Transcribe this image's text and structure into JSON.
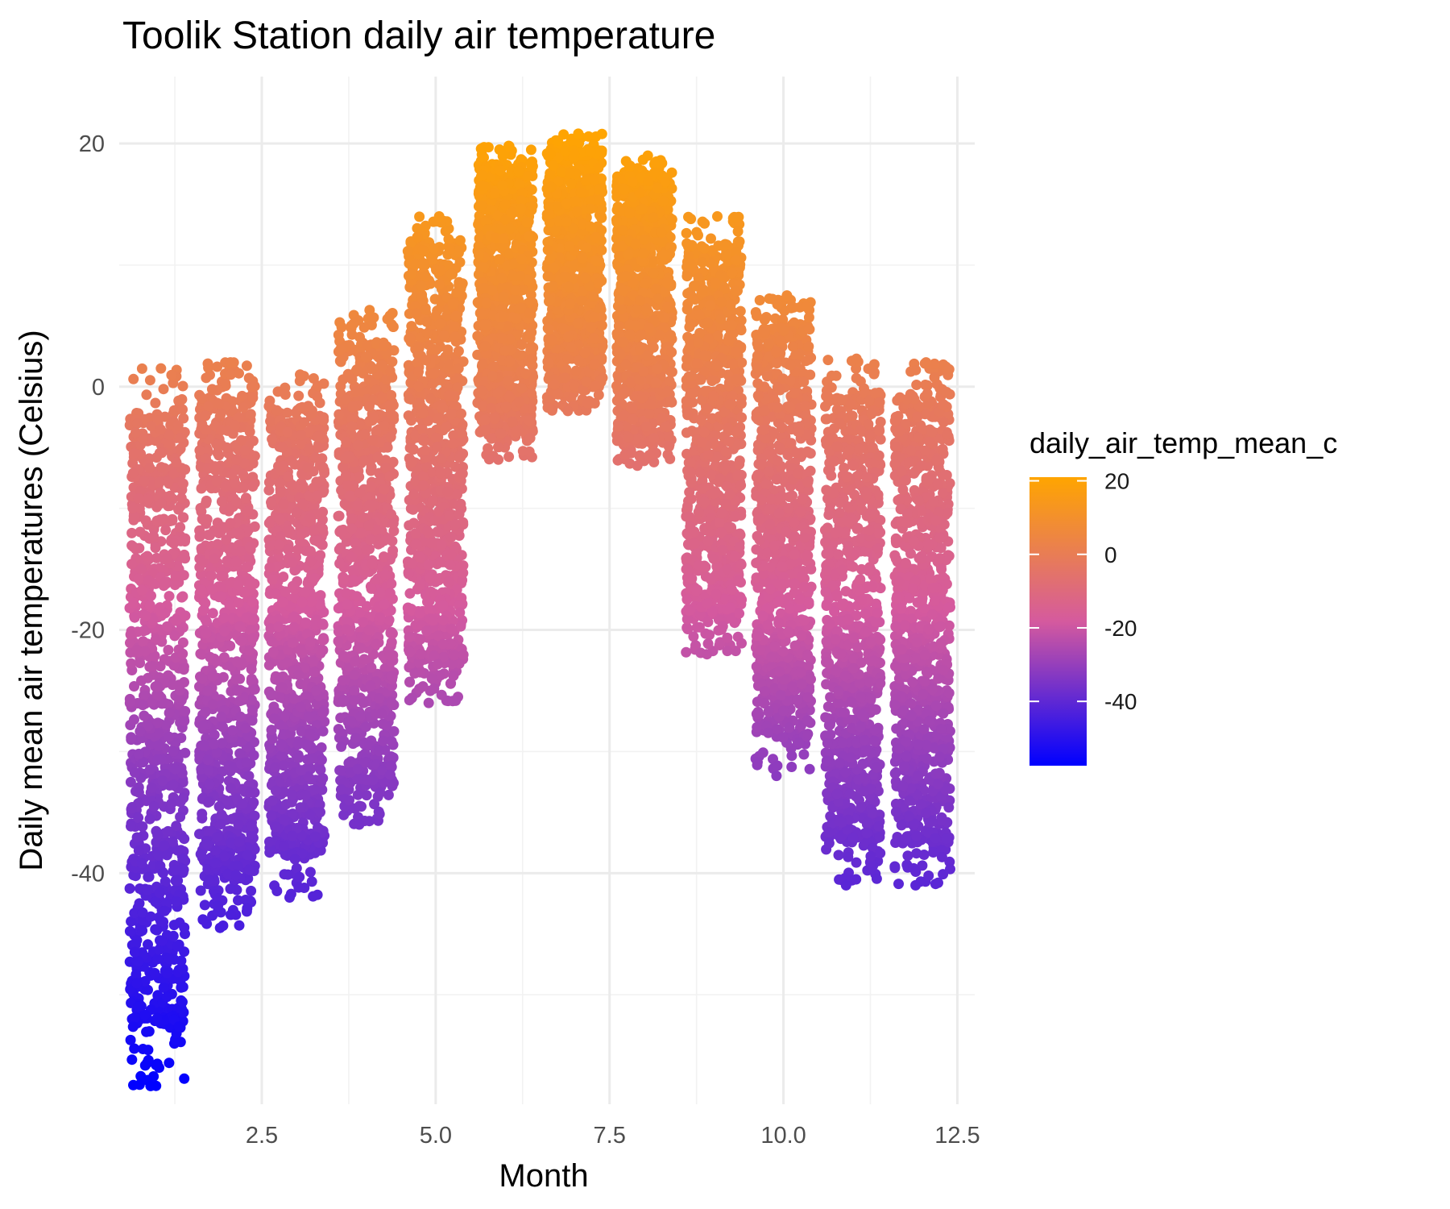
{
  "chart_data": {
    "type": "scatter",
    "title": "Toolik Station daily air temperature",
    "xlabel": "Month",
    "ylabel": "Daily mean air temperatures (Celsius)",
    "xlim": [
      0.45,
      12.75
    ],
    "ylim": [
      -59,
      25.5
    ],
    "x_ticks": [
      2.5,
      5.0,
      7.5,
      10.0,
      12.5
    ],
    "x_tick_labels": [
      "2.5",
      "5.0",
      "7.5",
      "10.0",
      "12.5"
    ],
    "y_ticks": [
      -40,
      -20,
      0,
      20
    ],
    "y_tick_labels": [
      "-40",
      "-20",
      "0",
      "20"
    ],
    "grid": true,
    "legend": {
      "title": "daily_air_temp_mean_c",
      "position": "right",
      "type": "colorbar",
      "range": [
        -57.5,
        21
      ],
      "ticks": [
        20,
        0,
        -20,
        -40
      ],
      "tick_labels": [
        "20",
        "0",
        "-20",
        "-40"
      ],
      "low_color": "#0000ff",
      "mid_color": "#d55a9e",
      "high_color": "#ffa500"
    },
    "monthly_ranges": [
      {
        "month": 1,
        "min": -57.5,
        "max": 1.5
      },
      {
        "month": 2,
        "min": -44.5,
        "max": 2.0
      },
      {
        "month": 3,
        "min": -42.0,
        "max": 1.0
      },
      {
        "month": 4,
        "min": -36.0,
        "max": 6.3
      },
      {
        "month": 5,
        "min": -26.0,
        "max": 14.0
      },
      {
        "month": 6,
        "min": -6.0,
        "max": 19.8
      },
      {
        "month": 7,
        "min": -2.0,
        "max": 20.8
      },
      {
        "month": 8,
        "min": -6.5,
        "max": 19.0
      },
      {
        "month": 9,
        "min": -22.0,
        "max": 14.0
      },
      {
        "month": 10,
        "min": -32.0,
        "max": 7.5
      },
      {
        "month": 11,
        "min": -41.0,
        "max": 2.3
      },
      {
        "month": 12,
        "min": -41.0,
        "max": 2.0
      }
    ]
  }
}
